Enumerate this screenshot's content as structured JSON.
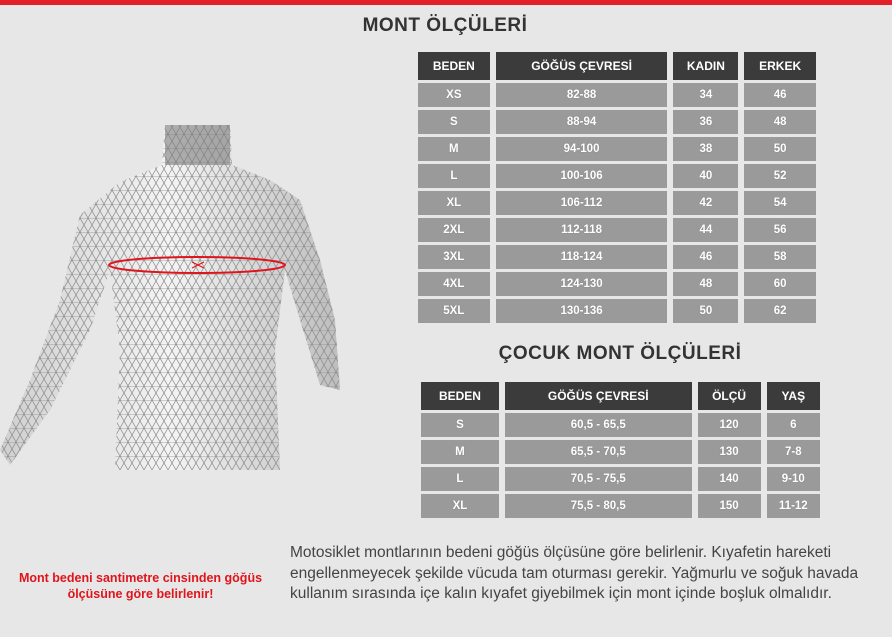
{
  "colors": {
    "accent": "#e3202a",
    "header_bg": "#3b3b3b",
    "cell_bg": "#9a9a9a"
  },
  "adult": {
    "title": "MONT ÖLÇÜLERİ",
    "headers": [
      "BEDEN",
      "GÖĞÜS ÇEVRESİ",
      "KADIN",
      "ERKEK"
    ],
    "rows": [
      [
        "XS",
        "82-88",
        "34",
        "46"
      ],
      [
        "S",
        "88-94",
        "36",
        "48"
      ],
      [
        "M",
        "94-100",
        "38",
        "50"
      ],
      [
        "L",
        "100-106",
        "40",
        "52"
      ],
      [
        "XL",
        "106-112",
        "42",
        "54"
      ],
      [
        "2XL",
        "112-118",
        "44",
        "56"
      ],
      [
        "3XL",
        "118-124",
        "46",
        "58"
      ],
      [
        "4XL",
        "124-130",
        "48",
        "60"
      ],
      [
        "5XL",
        "130-136",
        "50",
        "62"
      ]
    ]
  },
  "child": {
    "title": "ÇOCUK MONT ÖLÇÜLERİ",
    "headers": [
      "BEDEN",
      "GÖĞÜS ÇEVRESİ",
      "ÖLÇÜ",
      "YAŞ"
    ],
    "rows": [
      [
        "S",
        "60,5 - 65,5",
        "120",
        "6"
      ],
      [
        "M",
        "65,5 - 70,5",
        "130",
        "7-8"
      ],
      [
        "L",
        "70,5 - 75,5",
        "140",
        "9-10"
      ],
      [
        "XL",
        "75,5 - 80,5",
        "150",
        "11-12"
      ]
    ]
  },
  "figure_icon": "torso-chest-measurement",
  "note_red": "Mont bedeni santimetre cinsinden göğüs ölçüsüne göre belirlenir!",
  "description": "Motosiklet montlarının bedeni göğüs ölçüsüne göre belirlenir. Kıyafetin hareketi engellenmeyecek şekilde vücuda tam oturması gerekir. Yağmurlu ve soğuk havada kullanım sırasında içe kalın kıyafet giyebilmek için mont içinde boşluk olmalıdır."
}
